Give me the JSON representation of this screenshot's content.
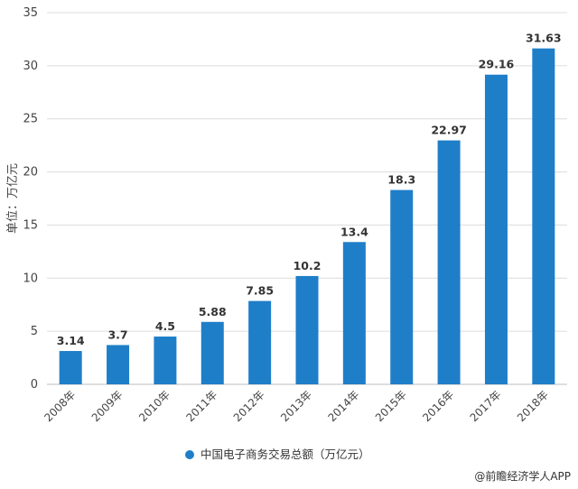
{
  "chart_data": {
    "type": "bar",
    "categories": [
      "2008年",
      "2009年",
      "2010年",
      "2011年",
      "2012年",
      "2013年",
      "2014年",
      "2015年",
      "2016年",
      "2017年",
      "2018年"
    ],
    "series": [
      {
        "name": "中国电子商务交易总额（万亿元）",
        "values": [
          3.14,
          3.7,
          4.5,
          5.88,
          7.85,
          10.2,
          13.4,
          18.3,
          22.97,
          29.16,
          31.63
        ]
      }
    ],
    "value_labels": [
      "3.14",
      "3.7",
      "4.5",
      "5.88",
      "7.85",
      "10.2",
      "13.4",
      "18.3",
      "22.97",
      "29.16",
      "31.63"
    ],
    "ylabel": "单位：万亿元",
    "ylim": [
      0,
      35
    ],
    "yticks": [
      0,
      5,
      10,
      15,
      20,
      25,
      30,
      35
    ],
    "grid": true,
    "legend": "bottom-center",
    "colors": {
      "bar": "#1f7ec8",
      "grid": "#dcdcdc"
    }
  },
  "source": "@前瞻经济学人APP"
}
